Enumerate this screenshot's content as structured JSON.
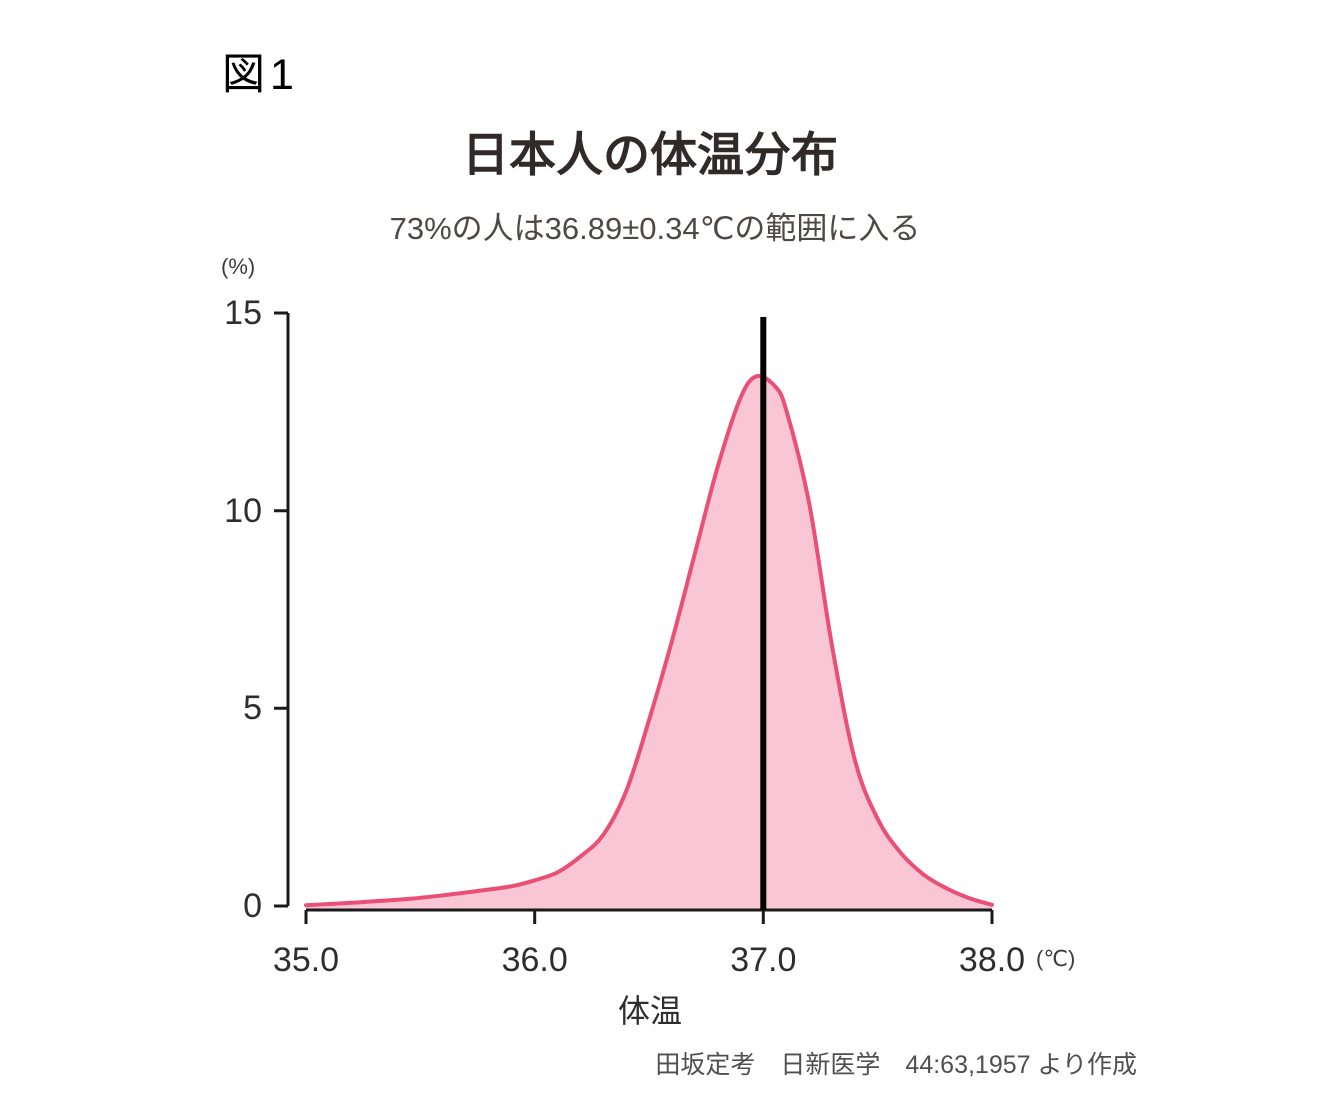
{
  "figure_label": "図1",
  "chart": {
    "title": "日本人の体温分布",
    "subtitle": "73%の人は36.89±0.34℃の範囲に入る",
    "y_axis": {
      "unit_label": "(%)"
    },
    "x_axis": {
      "label": "体温",
      "unit_label": "(℃)"
    },
    "source": "田坂定考　日新医学　44:63,1957 より作成"
  },
  "chart_data": {
    "type": "area",
    "title": "日本人の体温分布",
    "annotation": "73%の人は36.89±0.34℃の範囲に入る",
    "xlabel": "体温",
    "x_unit": "℃",
    "ylabel": "%",
    "xlim": [
      35.0,
      38.0
    ],
    "ylim": [
      0,
      15
    ],
    "x_ticks": [
      35.0,
      36.0,
      37.0,
      38.0
    ],
    "y_ticks": [
      0,
      5,
      10,
      15
    ],
    "grid": false,
    "legend": false,
    "mean_line_x": 37.0,
    "peak": {
      "x": 36.97,
      "y": 13.4
    },
    "stats_from_annotation": {
      "coverage_percent": 73,
      "mean_c": 36.89,
      "half_range_c": 0.34
    },
    "series": [
      {
        "name": "体温分布",
        "points": [
          [
            35.0,
            0.02
          ],
          [
            35.1,
            0.05
          ],
          [
            35.2,
            0.08
          ],
          [
            35.3,
            0.12
          ],
          [
            35.45,
            0.18
          ],
          [
            35.6,
            0.27
          ],
          [
            35.75,
            0.38
          ],
          [
            35.9,
            0.5
          ],
          [
            36.0,
            0.65
          ],
          [
            36.1,
            0.85
          ],
          [
            36.2,
            1.25
          ],
          [
            36.3,
            1.8
          ],
          [
            36.4,
            2.9
          ],
          [
            36.5,
            4.7
          ],
          [
            36.6,
            6.7
          ],
          [
            36.7,
            8.9
          ],
          [
            36.8,
            11.1
          ],
          [
            36.9,
            12.85
          ],
          [
            36.97,
            13.4
          ],
          [
            37.05,
            13.15
          ],
          [
            37.1,
            12.55
          ],
          [
            37.2,
            10.2
          ],
          [
            37.3,
            6.6
          ],
          [
            37.4,
            3.7
          ],
          [
            37.5,
            2.2
          ],
          [
            37.6,
            1.35
          ],
          [
            37.7,
            0.8
          ],
          [
            37.8,
            0.45
          ],
          [
            37.9,
            0.2
          ],
          [
            38.0,
            0.03
          ]
        ]
      }
    ],
    "colors": {
      "area_fill": "#f8c6d4",
      "curve_stroke": "#ea5076",
      "mean_line": "#000000",
      "axis": "#1a1a1a"
    }
  }
}
